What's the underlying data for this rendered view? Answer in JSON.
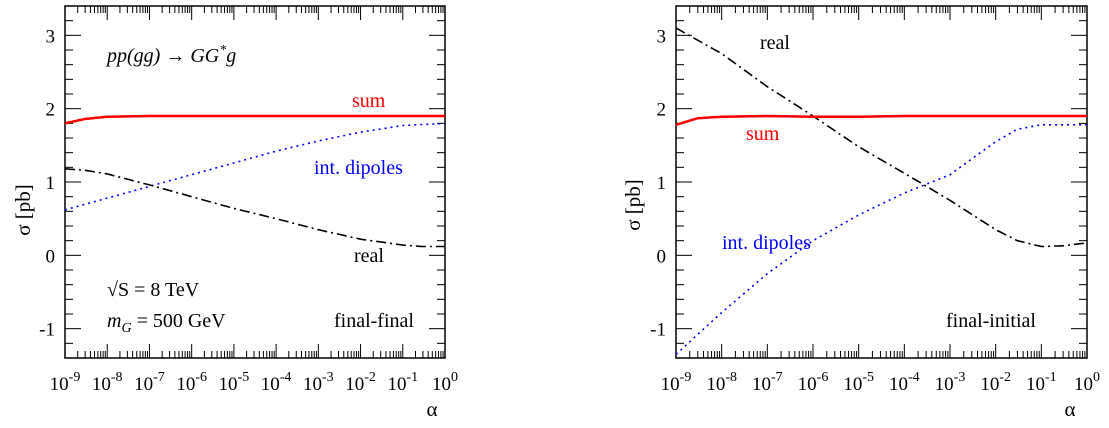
{
  "chart_data": [
    {
      "type": "line",
      "xscale": "log",
      "xlim": [
        1e-09,
        1
      ],
      "ylim": [
        -1.4,
        3.4
      ],
      "xlabel": "α",
      "ylabel": "σ [pb]",
      "xticks": [
        "10^-9",
        "10^-8",
        "10^-7",
        "10^-6",
        "10^-5",
        "10^-4",
        "10^-3",
        "10^-2",
        "10^-1",
        "10^0"
      ],
      "yticks": [
        "-1",
        "0",
        "1",
        "2",
        "3"
      ],
      "grid": false,
      "annotations": {
        "process": "pp(gg) → GG*g",
        "energy": "√S = 8 TeV",
        "mass": "m_G = 500 GeV",
        "region": "final-final"
      },
      "series": [
        {
          "name": "sum",
          "style": "solid",
          "color": "#ff0000",
          "x": [
            1e-09,
            3e-09,
            1e-08,
            1e-07,
            1e-06,
            1e-05,
            0.0001,
            0.001,
            0.01,
            0.1,
            1
          ],
          "y": [
            1.8,
            1.86,
            1.89,
            1.9,
            1.9,
            1.9,
            1.9,
            1.9,
            1.9,
            1.9,
            1.9
          ]
        },
        {
          "name": "int. dipoles",
          "style": "dotted",
          "color": "#0000ff",
          "x": [
            1e-09,
            1e-08,
            1e-07,
            1e-06,
            1e-05,
            0.0001,
            0.001,
            0.01,
            0.1,
            1
          ],
          "y": [
            0.62,
            0.78,
            0.94,
            1.1,
            1.26,
            1.42,
            1.56,
            1.68,
            1.77,
            1.8
          ]
        },
        {
          "name": "real",
          "style": "dashdot",
          "color": "#000000",
          "x": [
            1e-09,
            3e-09,
            1e-08,
            1e-07,
            1e-06,
            1e-05,
            0.0001,
            0.001,
            0.01,
            0.1,
            0.3,
            1
          ],
          "y": [
            1.18,
            1.16,
            1.11,
            0.96,
            0.8,
            0.64,
            0.5,
            0.35,
            0.22,
            0.14,
            0.12,
            0.12
          ]
        }
      ]
    },
    {
      "type": "line",
      "xscale": "log",
      "xlim": [
        1e-09,
        1
      ],
      "ylim": [
        -1.4,
        3.4
      ],
      "xlabel": "α",
      "ylabel": "σ [pb]",
      "xticks": [
        "10^-9",
        "10^-8",
        "10^-7",
        "10^-6",
        "10^-5",
        "10^-4",
        "10^-3",
        "10^-2",
        "10^-1",
        "10^0"
      ],
      "yticks": [
        "-1",
        "0",
        "1",
        "2",
        "3"
      ],
      "grid": false,
      "annotations": {
        "region": "final-initial"
      },
      "series": [
        {
          "name": "real",
          "style": "dashdot",
          "color": "#000000",
          "x": [
            1e-09,
            1e-08,
            1e-07,
            1e-06,
            1e-05,
            0.0001,
            0.001,
            0.01,
            0.03,
            0.1,
            0.3,
            1
          ],
          "y": [
            3.1,
            2.75,
            2.3,
            1.9,
            1.48,
            1.12,
            0.75,
            0.35,
            0.2,
            0.12,
            0.13,
            0.17
          ]
        },
        {
          "name": "sum",
          "style": "solid",
          "color": "#ff0000",
          "x": [
            1e-09,
            3e-09,
            1e-08,
            1e-07,
            1e-06,
            1e-05,
            0.0001,
            0.001,
            0.01,
            0.1,
            1
          ],
          "y": [
            1.78,
            1.87,
            1.89,
            1.9,
            1.89,
            1.89,
            1.9,
            1.9,
            1.9,
            1.9,
            1.9
          ]
        },
        {
          "name": "int. dipoles",
          "style": "dotted",
          "color": "#0000ff",
          "x": [
            1e-09,
            1e-08,
            1e-07,
            1e-06,
            1e-05,
            0.0001,
            0.001,
            0.01,
            0.03,
            0.1,
            0.3,
            1
          ],
          "y": [
            -1.35,
            -0.78,
            -0.25,
            0.2,
            0.55,
            0.85,
            1.1,
            1.55,
            1.72,
            1.78,
            1.78,
            1.78
          ]
        }
      ]
    }
  ]
}
